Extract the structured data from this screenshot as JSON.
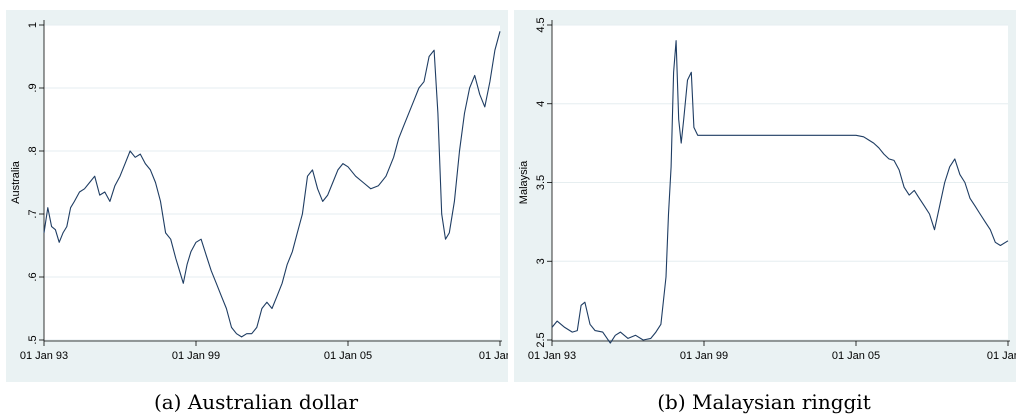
{
  "captions": {
    "a": "(a) Australian dollar",
    "b": "(b) Malaysian ringgit"
  },
  "colors": {
    "line": "#1f3d63",
    "panel_bg": "#eaf2f3",
    "plot_bg": "#ffffff",
    "grid": "#e6eef0"
  },
  "chart_data": [
    {
      "type": "line",
      "ylabel": "Australia",
      "xlabel": "",
      "xlim": [
        1993.0,
        2011.0
      ],
      "ylim": [
        0.5,
        1.0
      ],
      "xticks": [
        1993,
        1999,
        2005,
        2011
      ],
      "xtick_labels": [
        "01 Jan 93",
        "01 Jan 99",
        "01 Jan 05",
        "01 Jan 1"
      ],
      "yticks": [
        0.5,
        0.6,
        0.7,
        0.8,
        0.9,
        1.0
      ],
      "ytick_labels": [
        ".5",
        ".6",
        ".7",
        ".8",
        ".9",
        "1"
      ],
      "grid": true,
      "series": [
        {
          "x": [
            1993.0,
            1993.15,
            1993.3,
            1993.45,
            1993.6,
            1993.75,
            1993.9,
            1994.05,
            1994.2,
            1994.4,
            1994.6,
            1994.8,
            1995.0,
            1995.2,
            1995.4,
            1995.6,
            1995.8,
            1996.0,
            1996.2,
            1996.4,
            1996.6,
            1996.8,
            1997.0,
            1997.2,
            1997.4,
            1997.6,
            1997.8,
            1998.0,
            1998.2,
            1998.35,
            1998.5,
            1998.65,
            1998.8,
            1999.0,
            1999.2,
            1999.4,
            1999.6,
            1999.8,
            2000.0,
            2000.2,
            2000.4,
            2000.6,
            2000.8,
            2001.0,
            2001.2,
            2001.4,
            2001.6,
            2001.8,
            2002.0,
            2002.2,
            2002.4,
            2002.6,
            2002.8,
            2003.0,
            2003.2,
            2003.4,
            2003.6,
            2003.8,
            2004.0,
            2004.2,
            2004.4,
            2004.6,
            2004.8,
            2005.0,
            2005.3,
            2005.6,
            2005.9,
            2006.2,
            2006.5,
            2006.8,
            2007.0,
            2007.2,
            2007.4,
            2007.6,
            2007.8,
            2008.0,
            2008.2,
            2008.4,
            2008.55,
            2008.7,
            2008.85,
            2009.0,
            2009.2,
            2009.4,
            2009.6,
            2009.8,
            2010.0,
            2010.2,
            2010.4,
            2010.6,
            2010.8,
            2011.0
          ],
          "y": [
            0.67,
            0.71,
            0.68,
            0.675,
            0.655,
            0.67,
            0.68,
            0.71,
            0.72,
            0.735,
            0.74,
            0.75,
            0.76,
            0.73,
            0.735,
            0.72,
            0.745,
            0.76,
            0.78,
            0.8,
            0.79,
            0.795,
            0.78,
            0.77,
            0.75,
            0.72,
            0.67,
            0.66,
            0.63,
            0.61,
            0.59,
            0.62,
            0.64,
            0.655,
            0.66,
            0.635,
            0.61,
            0.59,
            0.57,
            0.55,
            0.52,
            0.51,
            0.505,
            0.51,
            0.51,
            0.52,
            0.55,
            0.56,
            0.55,
            0.57,
            0.59,
            0.62,
            0.64,
            0.67,
            0.7,
            0.76,
            0.77,
            0.74,
            0.72,
            0.73,
            0.75,
            0.77,
            0.78,
            0.775,
            0.76,
            0.75,
            0.74,
            0.745,
            0.76,
            0.79,
            0.82,
            0.84,
            0.86,
            0.88,
            0.9,
            0.91,
            0.95,
            0.96,
            0.86,
            0.7,
            0.66,
            0.67,
            0.72,
            0.8,
            0.86,
            0.9,
            0.92,
            0.89,
            0.87,
            0.91,
            0.96,
            0.99
          ]
        }
      ]
    },
    {
      "type": "line",
      "ylabel": "Malaysia",
      "xlabel": "",
      "xlim": [
        1993.0,
        2011.0
      ],
      "ylim": [
        2.5,
        4.5
      ],
      "xticks": [
        1993,
        1999,
        2005,
        2011
      ],
      "xtick_labels": [
        "01 Jan 93",
        "01 Jan 99",
        "01 Jan 05",
        "01 Jan 1"
      ],
      "yticks": [
        2.5,
        3.0,
        3.5,
        4.0,
        4.5
      ],
      "ytick_labels": [
        "2.5",
        "3",
        "3.5",
        "4",
        "4.5"
      ],
      "grid": true,
      "series": [
        {
          "x": [
            1993.0,
            1993.2,
            1993.5,
            1993.8,
            1994.0,
            1994.15,
            1994.3,
            1994.5,
            1994.7,
            1995.0,
            1995.3,
            1995.5,
            1995.7,
            1996.0,
            1996.3,
            1996.6,
            1996.9,
            1997.1,
            1997.3,
            1997.5,
            1997.6,
            1997.7,
            1997.8,
            1997.9,
            1998.0,
            1998.1,
            1998.2,
            1998.35,
            1998.5,
            1998.6,
            1998.75,
            1998.85,
            1999.0,
            2000.5,
            2002.0,
            2003.5,
            2005.0,
            2005.3,
            2005.5,
            2005.7,
            2005.9,
            2006.1,
            2006.3,
            2006.5,
            2006.7,
            2006.9,
            2007.1,
            2007.3,
            2007.5,
            2007.7,
            2007.9,
            2008.1,
            2008.3,
            2008.5,
            2008.7,
            2008.9,
            2009.1,
            2009.3,
            2009.5,
            2009.7,
            2009.9,
            2010.1,
            2010.3,
            2010.5,
            2010.7,
            2011.0
          ],
          "y": [
            2.58,
            2.62,
            2.58,
            2.55,
            2.56,
            2.72,
            2.74,
            2.6,
            2.56,
            2.55,
            2.48,
            2.53,
            2.55,
            2.51,
            2.53,
            2.5,
            2.51,
            2.55,
            2.6,
            2.9,
            3.3,
            3.6,
            4.2,
            4.4,
            3.9,
            3.75,
            3.9,
            4.15,
            4.2,
            3.85,
            3.8,
            3.8,
            3.8,
            3.8,
            3.8,
            3.8,
            3.8,
            3.79,
            3.77,
            3.75,
            3.72,
            3.68,
            3.65,
            3.64,
            3.58,
            3.47,
            3.42,
            3.45,
            3.4,
            3.35,
            3.3,
            3.2,
            3.35,
            3.5,
            3.6,
            3.65,
            3.55,
            3.5,
            3.4,
            3.35,
            3.3,
            3.25,
            3.2,
            3.12,
            3.1,
            3.13
          ]
        }
      ]
    }
  ]
}
